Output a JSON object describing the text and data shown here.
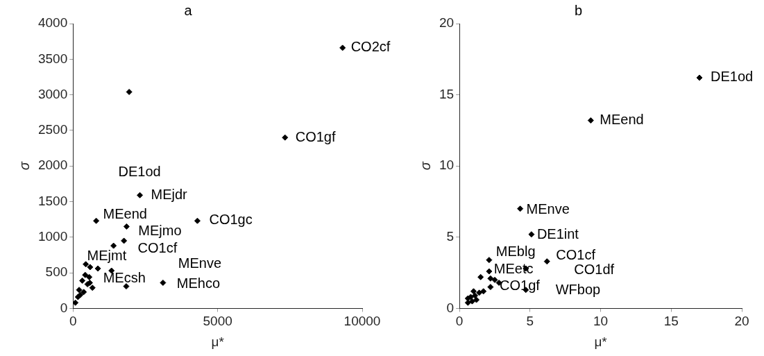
{
  "chart_data": [
    {
      "type": "scatter",
      "title": "a",
      "xlabel": "μ*",
      "ylabel": "σ",
      "xlim": [
        0,
        10000
      ],
      "ylim": [
        0,
        4000
      ],
      "xticks": [
        0,
        5000,
        10000
      ],
      "yticks": [
        0,
        500,
        1000,
        1500,
        2000,
        2500,
        3000,
        3500,
        4000
      ],
      "grid": false,
      "legend": false,
      "marker": "diamond",
      "series": [
        {
          "color": "#000000",
          "x": [
            9320,
            1940,
            7330,
            2310,
            800,
            4300,
            1850,
            1760,
            1400,
            440,
            590,
            860,
            1330,
            1840,
            3110,
            560,
            420,
            320,
            670,
            210,
            80,
            250,
            500,
            370,
            170,
            580
          ],
          "values": [
            3660,
            3040,
            2400,
            1590,
            1230,
            1230,
            1150,
            950,
            880,
            620,
            580,
            560,
            530,
            310,
            360,
            440,
            470,
            390,
            290,
            260,
            80,
            190,
            340,
            230,
            160,
            360
          ]
        }
      ],
      "annotations": [
        {
          "text": "CO2cf",
          "x": 9320,
          "y": 3660
        },
        {
          "text": "CO1gf",
          "x": 7330,
          "y": 2400
        },
        {
          "text": "DE1od",
          "x": 2310,
          "y": 1590
        },
        {
          "text": "MEjdr",
          "x": 2310,
          "y": 1590
        },
        {
          "text": "MEend",
          "x": 800,
          "y": 1230
        },
        {
          "text": "CO1gc",
          "x": 4300,
          "y": 1230
        },
        {
          "text": "MEjmo",
          "x": 1850,
          "y": 1150
        },
        {
          "text": "CO1cf",
          "x": 1760,
          "y": 950
        },
        {
          "text": "MEjmt",
          "x": 440,
          "y": 620
        },
        {
          "text": "MEnve",
          "x": 3110,
          "y": 360
        },
        {
          "text": "MEcsh",
          "x": 1330,
          "y": 530
        },
        {
          "text": "MEhco",
          "x": 3110,
          "y": 360
        }
      ]
    },
    {
      "type": "scatter",
      "title": "b",
      "xlabel": "μ*",
      "ylabel": "σ",
      "xlim": [
        0,
        20
      ],
      "ylim": [
        0,
        20
      ],
      "xticks": [
        0,
        5,
        10,
        15,
        20
      ],
      "yticks": [
        0,
        5,
        10,
        15,
        20
      ],
      "grid": false,
      "legend": false,
      "marker": "diamond",
      "series": [
        {
          "color": "#000000",
          "x": [
            17.0,
            9.3,
            4.3,
            5.1,
            6.2,
            2.1,
            2.1,
            4.7,
            1.5,
            2.2,
            2.5,
            2.8,
            2.2,
            4.7,
            1.7,
            0.6,
            0.9,
            1.2,
            0.8,
            1.1,
            1.4,
            1.0,
            0.6
          ],
          "values": [
            16.2,
            13.2,
            7.0,
            5.2,
            3.3,
            3.4,
            2.6,
            2.8,
            2.2,
            2.1,
            2.0,
            1.8,
            1.5,
            1.3,
            1.2,
            0.4,
            0.5,
            0.6,
            0.8,
            0.9,
            1.1,
            1.2,
            0.7
          ]
        }
      ],
      "annotations": [
        {
          "text": "DE1od",
          "x": 17.0,
          "y": 16.2
        },
        {
          "text": "MEend",
          "x": 9.3,
          "y": 13.2
        },
        {
          "text": "MEnve",
          "x": 4.3,
          "y": 7.0
        },
        {
          "text": "DE1int",
          "x": 5.1,
          "y": 5.2
        },
        {
          "text": "MEblg",
          "x": 2.1,
          "y": 3.4
        },
        {
          "text": "CO1cf",
          "x": 6.2,
          "y": 3.3
        },
        {
          "text": "MEetc",
          "x": 2.1,
          "y": 2.6
        },
        {
          "text": "CO1df",
          "x": 6.2,
          "y": 3.3
        },
        {
          "text": "CO1gf",
          "x": 2.8,
          "y": 1.8
        },
        {
          "text": "WFbop",
          "x": 4.7,
          "y": 1.3
        }
      ]
    }
  ]
}
